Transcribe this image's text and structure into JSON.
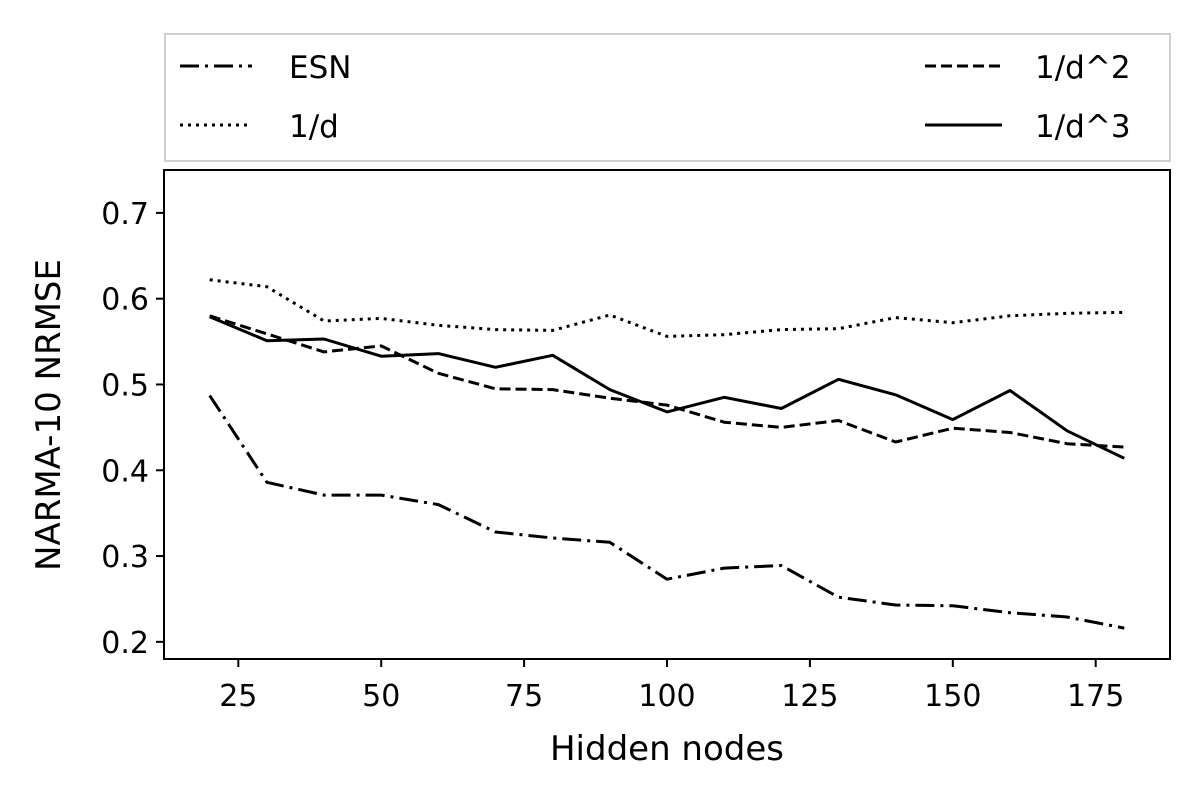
{
  "chart_data": {
    "type": "line",
    "xlabel": "Hidden nodes",
    "ylabel": "NARMA-10 NRMSE",
    "xlim": [
      12,
      188
    ],
    "ylim": [
      0.18,
      0.75
    ],
    "xticks": [
      25,
      50,
      75,
      100,
      125,
      150,
      175
    ],
    "yticks": [
      0.2,
      0.3,
      0.4,
      0.5,
      0.6,
      0.7
    ],
    "grid": false,
    "legend_position": "top, above plot, 2 columns",
    "x": [
      20,
      30,
      40,
      50,
      60,
      70,
      80,
      90,
      100,
      110,
      120,
      130,
      140,
      150,
      160,
      170,
      180
    ],
    "series": [
      {
        "name": "ESN",
        "style": "dashdot",
        "color": "#000000",
        "values": [
          0.487,
          0.386,
          0.371,
          0.371,
          0.36,
          0.328,
          0.321,
          0.316,
          0.273,
          0.286,
          0.289,
          0.252,
          0.243,
          0.242,
          0.234,
          0.229,
          0.216
        ]
      },
      {
        "name": "1/d^2",
        "style": "dashed",
        "color": "#000000",
        "values": [
          0.58,
          0.559,
          0.538,
          0.545,
          0.513,
          0.495,
          0.494,
          0.484,
          0.476,
          0.456,
          0.45,
          0.458,
          0.433,
          0.449,
          0.444,
          0.431,
          0.427
        ]
      },
      {
        "name": "1/d",
        "style": "dotted",
        "color": "#000000",
        "values": [
          0.622,
          0.614,
          0.574,
          0.577,
          0.569,
          0.564,
          0.563,
          0.581,
          0.556,
          0.558,
          0.564,
          0.565,
          0.578,
          0.572,
          0.58,
          0.583,
          0.584
        ]
      },
      {
        "name": "1/d^3",
        "style": "solid",
        "color": "#000000",
        "values": [
          0.579,
          0.551,
          0.553,
          0.533,
          0.536,
          0.52,
          0.534,
          0.494,
          0.468,
          0.485,
          0.472,
          0.506,
          0.488,
          0.459,
          0.493,
          0.446,
          0.414
        ]
      }
    ]
  }
}
